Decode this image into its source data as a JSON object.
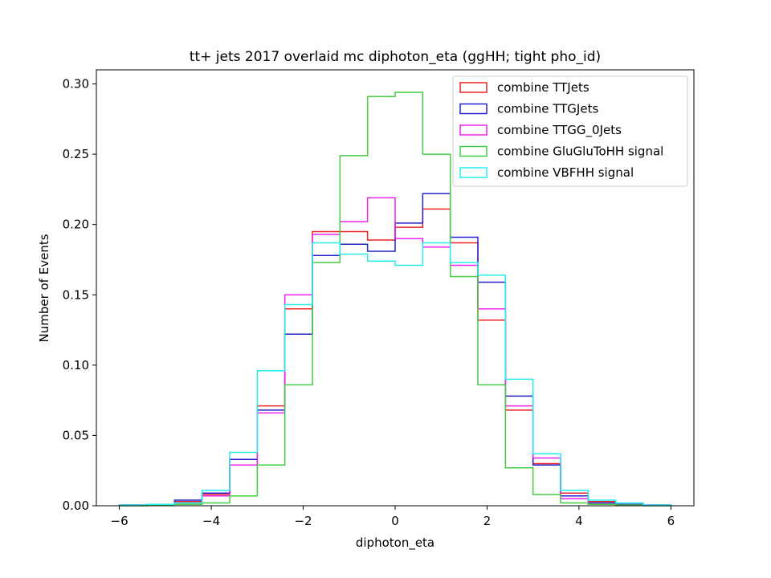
{
  "chart_data": {
    "type": "histogram",
    "title": "tt+ jets 2017 overlaid mc diphoton_eta (ggHH; tight pho_id)",
    "xlabel": "diphoton_eta",
    "ylabel": "Number of Events",
    "xlim": [
      -6.5,
      6.5
    ],
    "ylim": [
      0,
      0.31
    ],
    "xticks": [
      -6,
      -4,
      -2,
      0,
      2,
      4,
      6
    ],
    "yticks": [
      0.0,
      0.05,
      0.1,
      0.15,
      0.2,
      0.25,
      0.3
    ],
    "xtick_labels": [
      "−6",
      "−4",
      "−2",
      "0",
      "2",
      "4",
      "6"
    ],
    "ytick_labels": [
      "0.00",
      "0.05",
      "0.10",
      "0.15",
      "0.20",
      "0.25",
      "0.30"
    ],
    "bin_edges": [
      -6.0,
      -5.4,
      -4.8,
      -4.2,
      -3.6,
      -3.0,
      -2.4,
      -1.8,
      -1.2,
      -0.6,
      0.0,
      0.6,
      1.2,
      1.8,
      2.4,
      3.0,
      3.6,
      4.2,
      4.8,
      5.4,
      6.0
    ],
    "legend_position": "upper right",
    "series": [
      {
        "name": "combine TTJets",
        "color": "#ee2222",
        "values": [
          0.0005,
          0.001,
          0.003,
          0.008,
          0.029,
          0.071,
          0.14,
          0.195,
          0.195,
          0.189,
          0.198,
          0.211,
          0.187,
          0.132,
          0.068,
          0.03,
          0.009,
          0.003,
          0.001,
          0.0005
        ]
      },
      {
        "name": "combine TTGJets",
        "color": "#2222cc",
        "values": [
          0.0005,
          0.001,
          0.004,
          0.009,
          0.033,
          0.068,
          0.122,
          0.178,
          0.186,
          0.181,
          0.201,
          0.222,
          0.191,
          0.159,
          0.078,
          0.029,
          0.007,
          0.002,
          0.001,
          0.0005
        ]
      },
      {
        "name": "combine TTGG_0Jets",
        "color": "#ee22ee",
        "values": [
          0.0005,
          0.001,
          0.002,
          0.007,
          0.029,
          0.066,
          0.15,
          0.193,
          0.202,
          0.219,
          0.19,
          0.184,
          0.171,
          0.14,
          0.071,
          0.034,
          0.005,
          0.001,
          0.0005,
          0.0005
        ]
      },
      {
        "name": "combine GluGluToHH signal",
        "color": "#44cc44",
        "values": [
          0.0,
          0.0005,
          0.001,
          0.002,
          0.007,
          0.029,
          0.086,
          0.173,
          0.249,
          0.291,
          0.294,
          0.25,
          0.163,
          0.086,
          0.027,
          0.008,
          0.002,
          0.001,
          0.0005,
          0.0
        ]
      },
      {
        "name": "combine VBFHH signal",
        "color": "#22eeee",
        "values": [
          0.0005,
          0.001,
          0.002,
          0.011,
          0.038,
          0.096,
          0.143,
          0.187,
          0.179,
          0.174,
          0.171,
          0.187,
          0.173,
          0.164,
          0.09,
          0.037,
          0.011,
          0.004,
          0.002,
          0.0005
        ]
      }
    ]
  }
}
